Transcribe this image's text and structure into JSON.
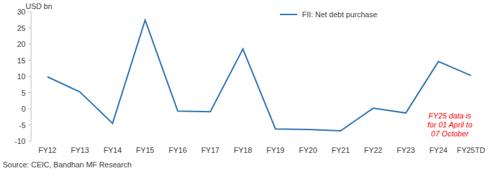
{
  "chart_data": {
    "type": "line",
    "y_label": "USD bn",
    "categories": [
      "FY12",
      "FY13",
      "FY14",
      "FY15",
      "FY16",
      "FY17",
      "FY18",
      "FY19",
      "FY20",
      "FY21",
      "FY22",
      "FY23",
      "FY24",
      "FY25TD"
    ],
    "series": [
      {
        "name": "FII: Net debt purchase",
        "color": "#2e75b6",
        "values": [
          9.9,
          5.2,
          -4.5,
          27.4,
          -0.7,
          -0.9,
          18.5,
          -6.2,
          -6.4,
          -6.8,
          0.2,
          -1.3,
          14.6,
          10.3
        ]
      }
    ],
    "ylim": [
      -10,
      30
    ],
    "yticks": [
      -10,
      -5,
      0,
      5,
      10,
      15,
      20,
      25,
      30
    ],
    "grid": false,
    "legend": "top",
    "annotations": [
      "FY25 data is",
      "for 01 April to",
      "07 October"
    ],
    "source": "Source: CEIC, Bandhan MF Research"
  }
}
